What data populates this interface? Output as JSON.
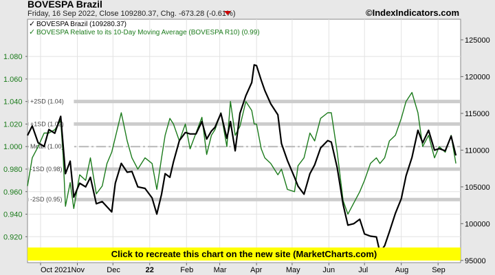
{
  "header": {
    "title": "BOVESPA Brazil",
    "subtitle": "Friday, 16 Sep 2022, Close 109280.37, Chg. -673.28 (-0.61%)",
    "site": "©IndexIndicators.com"
  },
  "banner": {
    "text": "Click to recreate this chart on the new site (MarketCharts.com)"
  },
  "colors": {
    "index": "#000000",
    "ratio": "#1a7a1a",
    "banner": "#ffff00",
    "change_marker": "#cc0000",
    "band": "#c8c8c8"
  },
  "chart_data": {
    "type": "line",
    "legend_placement": "top-left",
    "grid": true,
    "x_ticks": [
      {
        "label": "Oct 2021",
        "date": "2021-10-01"
      },
      {
        "label": "Nov",
        "date": "2021-11-01"
      },
      {
        "label": "Dec",
        "date": "2021-12-01"
      },
      {
        "label": "22",
        "date": "2022-01-01"
      },
      {
        "label": "Feb",
        "date": "2022-02-01"
      },
      {
        "label": "Mar",
        "date": "2022-03-01"
      },
      {
        "label": "Apr",
        "date": "2022-04-01"
      },
      {
        "label": "May",
        "date": "2022-05-01"
      },
      {
        "label": "Jun",
        "date": "2022-06-01"
      },
      {
        "label": "Jul",
        "date": "2022-07-01"
      },
      {
        "label": "Aug",
        "date": "2022-08-01"
      },
      {
        "label": "Sep",
        "date": "2022-09-01"
      }
    ],
    "xlim": [
      "2021-09-20",
      "2022-09-20"
    ],
    "y_left": {
      "ylim": [
        0.897,
        1.113
      ],
      "ticks": [
        "0.920",
        "0.940",
        "0.960",
        "0.980",
        "1.000",
        "1.020",
        "1.040",
        "1.060",
        "1.080"
      ]
    },
    "y_right": {
      "ylim": [
        94700,
        127800
      ],
      "ticks": [
        "95000",
        "100000",
        "105000",
        "110000",
        "115000",
        "120000",
        "125000"
      ]
    },
    "bands": [
      {
        "label": "+2SD (1.04)",
        "value": 1.04
      },
      {
        "label": "+1SD (1.02)",
        "value": 1.02
      },
      {
        "label": "Mean (1.00)",
        "value": 1.0
      },
      {
        "label": "-1SD (0.98)",
        "value": 0.98
      },
      {
        "label": "-2SD (0.95)",
        "value": 0.953
      }
    ],
    "series": [
      {
        "name": "BOVESPA Brazil (109280.37)",
        "axis": "right",
        "points": [
          [
            "2021-09-20",
            112000
          ],
          [
            "2021-09-24",
            113300
          ],
          [
            "2021-09-29",
            111000
          ],
          [
            "2021-10-04",
            110500
          ],
          [
            "2021-10-08",
            112800
          ],
          [
            "2021-10-13",
            112300
          ],
          [
            "2021-10-18",
            114600
          ],
          [
            "2021-10-20",
            110700
          ],
          [
            "2021-10-22",
            106800
          ],
          [
            "2021-10-26",
            108500
          ],
          [
            "2021-10-29",
            103600
          ],
          [
            "2021-11-03",
            105500
          ],
          [
            "2021-11-08",
            105000
          ],
          [
            "2021-11-12",
            106300
          ],
          [
            "2021-11-17",
            102700
          ],
          [
            "2021-11-22",
            103000
          ],
          [
            "2021-11-26",
            102300
          ],
          [
            "2021-11-30",
            101600
          ],
          [
            "2021-12-03",
            105500
          ],
          [
            "2021-12-08",
            108200
          ],
          [
            "2021-12-13",
            107000
          ],
          [
            "2021-12-17",
            107100
          ],
          [
            "2021-12-22",
            105000
          ],
          [
            "2021-12-28",
            104800
          ],
          [
            "2022-01-03",
            103500
          ],
          [
            "2022-01-07",
            101300
          ],
          [
            "2022-01-11",
            104000
          ],
          [
            "2022-01-14",
            106800
          ],
          [
            "2022-01-18",
            106300
          ],
          [
            "2022-01-21",
            108400
          ],
          [
            "2022-01-26",
            111300
          ],
          [
            "2022-01-31",
            112400
          ],
          [
            "2022-02-04",
            112200
          ],
          [
            "2022-02-09",
            112200
          ],
          [
            "2022-02-14",
            113900
          ],
          [
            "2022-02-18",
            111500
          ],
          [
            "2022-02-22",
            112600
          ],
          [
            "2022-02-25",
            113100
          ],
          [
            "2022-03-02",
            115000
          ],
          [
            "2022-03-07",
            111600
          ],
          [
            "2022-03-10",
            113900
          ],
          [
            "2022-03-14",
            109900
          ],
          [
            "2022-03-18",
            115000
          ],
          [
            "2022-03-23",
            117400
          ],
          [
            "2022-03-28",
            119200
          ],
          [
            "2022-03-30",
            121600
          ],
          [
            "2022-04-01",
            121500
          ],
          [
            "2022-04-05",
            119500
          ],
          [
            "2022-04-08",
            118100
          ],
          [
            "2022-04-13",
            116300
          ],
          [
            "2022-04-19",
            114800
          ],
          [
            "2022-04-22",
            110900
          ],
          [
            "2022-04-27",
            108600
          ],
          [
            "2022-05-03",
            106300
          ],
          [
            "2022-05-06",
            105100
          ],
          [
            "2022-05-11",
            104000
          ],
          [
            "2022-05-16",
            106800
          ],
          [
            "2022-05-20",
            108000
          ],
          [
            "2022-05-25",
            110300
          ],
          [
            "2022-05-31",
            111300
          ],
          [
            "2022-06-03",
            111100
          ],
          [
            "2022-06-08",
            107600
          ],
          [
            "2022-06-13",
            102600
          ],
          [
            "2022-06-17",
            99800
          ],
          [
            "2022-06-22",
            100000
          ],
          [
            "2022-06-27",
            100600
          ],
          [
            "2022-07-01",
            98600
          ],
          [
            "2022-07-06",
            98300
          ],
          [
            "2022-07-11",
            98200
          ],
          [
            "2022-07-14",
            96100
          ],
          [
            "2022-07-18",
            97000
          ],
          [
            "2022-07-22",
            98900
          ],
          [
            "2022-07-27",
            101400
          ],
          [
            "2022-08-01",
            103400
          ],
          [
            "2022-08-05",
            106500
          ],
          [
            "2022-08-10",
            109000
          ],
          [
            "2022-08-15",
            112700
          ],
          [
            "2022-08-19",
            111000
          ],
          [
            "2022-08-24",
            112700
          ],
          [
            "2022-08-29",
            110000
          ],
          [
            "2022-09-02",
            110200
          ],
          [
            "2022-09-07",
            109900
          ],
          [
            "2022-09-12",
            111900
          ],
          [
            "2022-09-16",
            109280
          ]
        ]
      },
      {
        "name": "BOVESPA Relative to its 10-Day Moving Average (BOVESPA R10) (0.99)",
        "axis": "left",
        "points": [
          [
            "2021-09-20",
            0.965
          ],
          [
            "2021-09-24",
            0.99
          ],
          [
            "2021-09-29",
            1.0
          ],
          [
            "2021-10-04",
            1.012
          ],
          [
            "2021-10-08",
            1.012
          ],
          [
            "2021-10-13",
            1.015
          ],
          [
            "2021-10-18",
            1.023
          ],
          [
            "2021-10-20",
            0.992
          ],
          [
            "2021-10-22",
            0.947
          ],
          [
            "2021-10-26",
            0.968
          ],
          [
            "2021-10-29",
            0.945
          ],
          [
            "2021-11-03",
            0.975
          ],
          [
            "2021-11-08",
            0.97
          ],
          [
            "2021-11-12",
            0.99
          ],
          [
            "2021-11-17",
            0.958
          ],
          [
            "2021-11-22",
            0.965
          ],
          [
            "2021-11-26",
            0.985
          ],
          [
            "2021-11-30",
            0.995
          ],
          [
            "2021-12-03",
            1.008
          ],
          [
            "2021-12-08",
            1.03
          ],
          [
            "2021-12-13",
            1.005
          ],
          [
            "2021-12-17",
            0.99
          ],
          [
            "2021-12-22",
            0.98
          ],
          [
            "2021-12-28",
            0.99
          ],
          [
            "2022-01-03",
            0.985
          ],
          [
            "2022-01-07",
            0.962
          ],
          [
            "2022-01-11",
            0.99
          ],
          [
            "2022-01-14",
            1.01
          ],
          [
            "2022-01-18",
            1.025
          ],
          [
            "2022-01-21",
            1.02
          ],
          [
            "2022-01-26",
            1.005
          ],
          [
            "2022-01-31",
            1.02
          ],
          [
            "2022-02-04",
            0.998
          ],
          [
            "2022-02-09",
            1.012
          ],
          [
            "2022-02-14",
            1.026
          ],
          [
            "2022-02-18",
            0.993
          ],
          [
            "2022-02-22",
            1.01
          ],
          [
            "2022-02-25",
            1.015
          ],
          [
            "2022-03-02",
            1.03
          ],
          [
            "2022-03-07",
            1.0
          ],
          [
            "2022-03-10",
            1.04
          ],
          [
            "2022-03-14",
            1.01
          ],
          [
            "2022-03-18",
            1.018
          ],
          [
            "2022-03-23",
            1.04
          ],
          [
            "2022-03-28",
            1.032
          ],
          [
            "2022-03-30",
            1.02
          ],
          [
            "2022-04-01",
            1.02
          ],
          [
            "2022-04-05",
            0.998
          ],
          [
            "2022-04-08",
            0.99
          ],
          [
            "2022-04-13",
            0.985
          ],
          [
            "2022-04-19",
            0.975
          ],
          [
            "2022-04-22",
            0.98
          ],
          [
            "2022-04-27",
            0.962
          ],
          [
            "2022-05-03",
            0.96
          ],
          [
            "2022-05-06",
            0.983
          ],
          [
            "2022-05-11",
            0.99
          ],
          [
            "2022-05-16",
            1.012
          ],
          [
            "2022-05-20",
            1.005
          ],
          [
            "2022-05-25",
            1.025
          ],
          [
            "2022-05-31",
            1.03
          ],
          [
            "2022-06-03",
            1.03
          ],
          [
            "2022-06-08",
            0.995
          ],
          [
            "2022-06-13",
            0.952
          ],
          [
            "2022-06-17",
            0.94
          ],
          [
            "2022-06-22",
            0.95
          ],
          [
            "2022-06-27",
            0.96
          ],
          [
            "2022-07-01",
            0.97
          ],
          [
            "2022-07-06",
            0.985
          ],
          [
            "2022-07-11",
            0.99
          ],
          [
            "2022-07-14",
            0.985
          ],
          [
            "2022-07-18",
            0.99
          ],
          [
            "2022-07-22",
            1.005
          ],
          [
            "2022-07-27",
            1.01
          ],
          [
            "2022-08-01",
            1.025
          ],
          [
            "2022-08-05",
            1.04
          ],
          [
            "2022-08-10",
            1.048
          ],
          [
            "2022-08-15",
            1.03
          ],
          [
            "2022-08-19",
            1.0
          ],
          [
            "2022-08-24",
            1.01
          ],
          [
            "2022-08-29",
            0.99
          ],
          [
            "2022-09-02",
            1.0
          ],
          [
            "2022-09-07",
            0.995
          ],
          [
            "2022-09-12",
            1.01
          ],
          [
            "2022-09-16",
            0.985
          ]
        ]
      }
    ]
  }
}
